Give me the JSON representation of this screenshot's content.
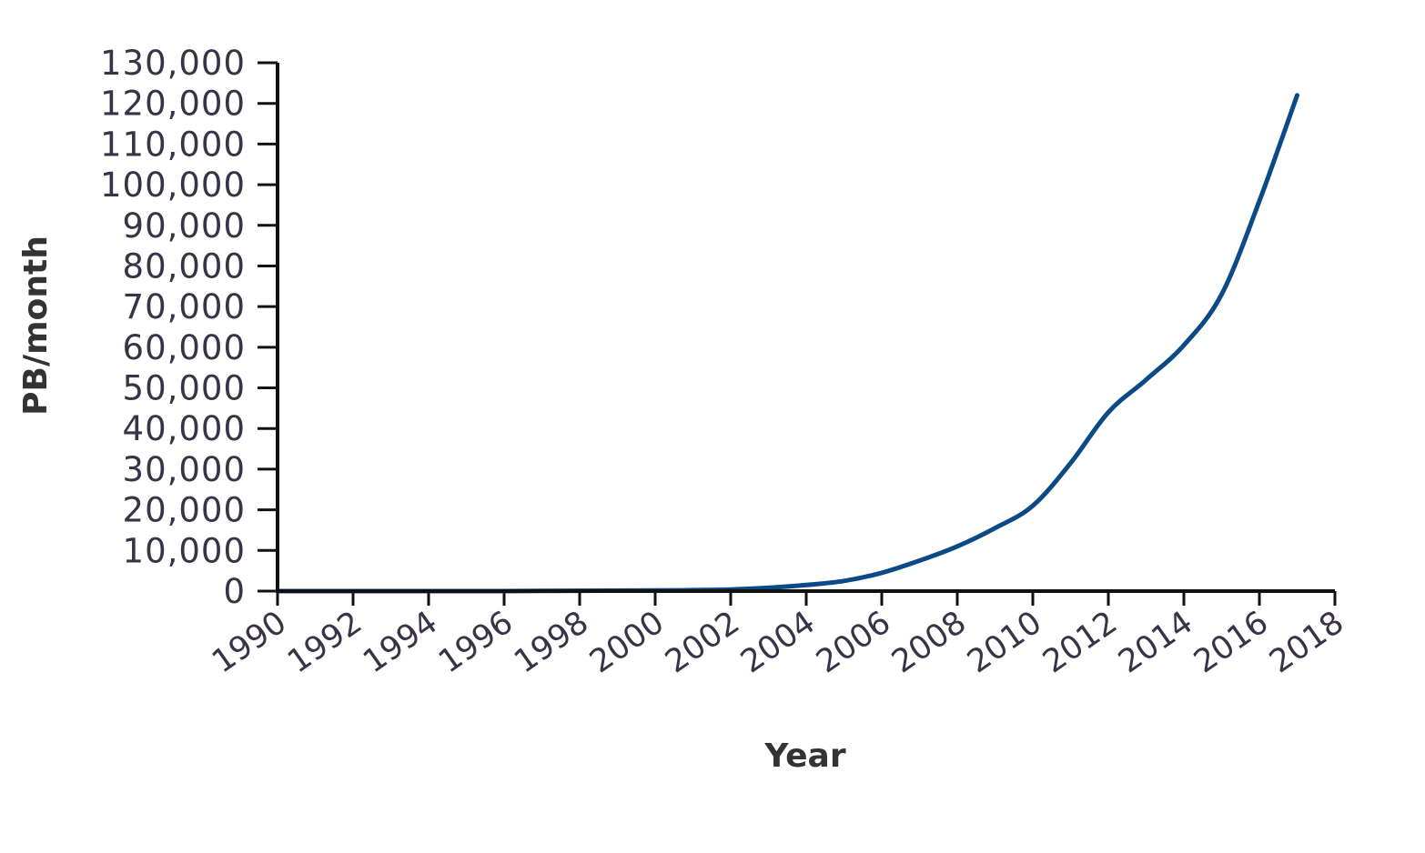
{
  "colors": {
    "line": "#0b4a86",
    "axis": "#111111",
    "tick_text": "#3a3246",
    "title_text": "#333333"
  },
  "chart_data": {
    "type": "line",
    "xlabel": "Year",
    "ylabel": "PB/month",
    "xlim": [
      1990,
      2018
    ],
    "ylim": [
      0,
      130000
    ],
    "x_ticks": [
      "1990",
      "1992",
      "1994",
      "1996",
      "1998",
      "2000",
      "2002",
      "2004",
      "2006",
      "2008",
      "2010",
      "2012",
      "2014",
      "2016",
      "2018"
    ],
    "y_ticks": [
      "0",
      "10,000",
      "20,000",
      "30,000",
      "40,000",
      "50,000",
      "60,000",
      "70,000",
      "80,000",
      "90,000",
      "100,000",
      "110,000",
      "120,000",
      "130,000"
    ],
    "grid": false,
    "legend": "none",
    "series": [
      {
        "x": [
          1990,
          1992,
          1994,
          1996,
          1998,
          2000,
          2001,
          2002,
          2003,
          2004,
          2005,
          2006,
          2007,
          2008,
          2009,
          2010,
          2011,
          2012,
          2013,
          2014,
          2015,
          2016,
          2017
        ],
        "y": [
          0,
          0,
          0,
          0,
          100,
          150,
          250,
          400,
          800,
          1500,
          2500,
          4500,
          7500,
          11000,
          15500,
          21000,
          31500,
          44000,
          52000,
          60500,
          73000,
          96000,
          122000
        ]
      }
    ]
  }
}
